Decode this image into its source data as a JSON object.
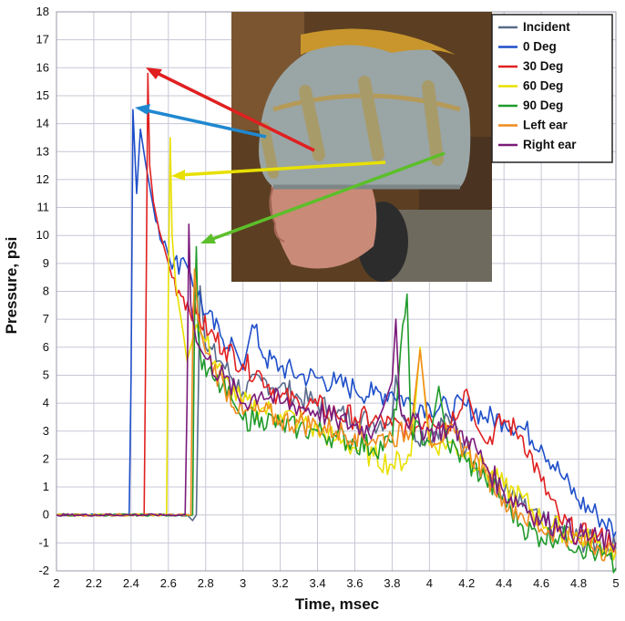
{
  "chart_data": {
    "type": "line",
    "xlabel": "Time, msec",
    "ylabel": "Pressure, psi",
    "xlim": [
      2,
      5
    ],
    "ylim": [
      -2,
      18
    ],
    "x_ticks": [
      "2",
      "2.2",
      "2.4",
      "2.6",
      "2.8",
      "3",
      "3.2",
      "3.4",
      "3.6",
      "3.8",
      "4",
      "4.2",
      "4.4",
      "4.6",
      "4.8",
      "5"
    ],
    "y_ticks": [
      "-2",
      "-1",
      "0",
      "1",
      "2",
      "3",
      "4",
      "5",
      "6",
      "7",
      "8",
      "9",
      "10",
      "11",
      "12",
      "13",
      "14",
      "15",
      "16",
      "17",
      "18"
    ],
    "grid": true,
    "legend_position": "top-right",
    "inset_image": "helmeted manikin head with pressure gauge locations",
    "series": [
      {
        "name": "Incident",
        "color": "#5a6a8a",
        "points": [
          [
            2,
            0
          ],
          [
            2.7,
            0
          ],
          [
            2.73,
            -0.2
          ],
          [
            2.75,
            0
          ],
          [
            2.77,
            8.2
          ],
          [
            2.8,
            6
          ],
          [
            2.88,
            5.5
          ],
          [
            3.0,
            4.4
          ],
          [
            3.1,
            4.8
          ],
          [
            3.2,
            4.6
          ],
          [
            3.3,
            4.2
          ],
          [
            3.4,
            4.0
          ],
          [
            3.5,
            3.6
          ],
          [
            3.6,
            3.5
          ],
          [
            3.7,
            3.3
          ],
          [
            3.8,
            3.5
          ],
          [
            3.82,
            5.0
          ],
          [
            3.85,
            3.6
          ],
          [
            3.9,
            3.0
          ],
          [
            4.0,
            2.8
          ],
          [
            4.1,
            3.5
          ],
          [
            4.2,
            2.4
          ],
          [
            4.3,
            1.5
          ],
          [
            4.4,
            0.8
          ],
          [
            4.5,
            0.3
          ],
          [
            4.6,
            -0.3
          ],
          [
            4.7,
            -0.5
          ],
          [
            4.8,
            -0.9
          ],
          [
            4.9,
            -1.0
          ],
          [
            5.0,
            -1.2
          ]
        ]
      },
      {
        "name": "0 Deg",
        "color": "#1f4fc9",
        "points": [
          [
            2,
            0
          ],
          [
            2.39,
            0
          ],
          [
            2.4,
            5
          ],
          [
            2.41,
            14.5
          ],
          [
            2.43,
            11.5
          ],
          [
            2.45,
            13.8
          ],
          [
            2.48,
            12.5
          ],
          [
            2.52,
            11
          ],
          [
            2.58,
            9.8
          ],
          [
            2.62,
            8.8
          ],
          [
            2.68,
            9.2
          ],
          [
            2.72,
            8.6
          ],
          [
            2.8,
            7.2
          ],
          [
            2.88,
            6.4
          ],
          [
            2.95,
            6.1
          ],
          [
            3.0,
            5.2
          ],
          [
            3.05,
            6.8
          ],
          [
            3.12,
            5.6
          ],
          [
            3.2,
            5.3
          ],
          [
            3.3,
            5.0
          ],
          [
            3.4,
            4.9
          ],
          [
            3.5,
            4.7
          ],
          [
            3.6,
            4.5
          ],
          [
            3.7,
            4.3
          ],
          [
            3.8,
            4.4
          ],
          [
            3.9,
            4.0
          ],
          [
            4.0,
            3.9
          ],
          [
            4.1,
            3.8
          ],
          [
            4.2,
            3.9
          ],
          [
            4.3,
            3.5
          ],
          [
            4.4,
            3.4
          ],
          [
            4.5,
            3.1
          ],
          [
            4.6,
            2.5
          ],
          [
            4.7,
            1.5
          ],
          [
            4.8,
            0.5
          ],
          [
            4.9,
            0
          ],
          [
            5.0,
            -0.6
          ]
        ]
      },
      {
        "name": "30 Deg",
        "color": "#e02020",
        "points": [
          [
            2,
            0
          ],
          [
            2.47,
            0
          ],
          [
            2.48,
            7
          ],
          [
            2.49,
            15.8
          ],
          [
            2.5,
            12.5
          ],
          [
            2.52,
            11.2
          ],
          [
            2.55,
            10.2
          ],
          [
            2.58,
            9.5
          ],
          [
            2.62,
            8.5
          ],
          [
            2.68,
            7.8
          ],
          [
            2.75,
            7.2
          ],
          [
            2.82,
            6.5
          ],
          [
            2.9,
            6.0
          ],
          [
            3.0,
            5.4
          ],
          [
            3.1,
            5.0
          ],
          [
            3.2,
            4.2
          ],
          [
            3.3,
            4.0
          ],
          [
            3.4,
            3.9
          ],
          [
            3.5,
            3.6
          ],
          [
            3.6,
            3.5
          ],
          [
            3.7,
            3.4
          ],
          [
            3.8,
            3.2
          ],
          [
            3.9,
            3.0
          ],
          [
            4.0,
            3.6
          ],
          [
            4.1,
            3.2
          ],
          [
            4.2,
            4.5
          ],
          [
            4.25,
            3.2
          ],
          [
            4.3,
            2.6
          ],
          [
            4.4,
            3.4
          ],
          [
            4.5,
            2.8
          ],
          [
            4.6,
            1.2
          ],
          [
            4.7,
            -0.2
          ],
          [
            4.8,
            -0.7
          ],
          [
            4.9,
            -0.8
          ],
          [
            5.0,
            -1.0
          ]
        ]
      },
      {
        "name": "60 Deg",
        "color": "#e8e000",
        "points": [
          [
            2,
            0
          ],
          [
            2.59,
            0
          ],
          [
            2.6,
            8
          ],
          [
            2.61,
            13.5
          ],
          [
            2.62,
            10
          ],
          [
            2.64,
            8.2
          ],
          [
            2.68,
            6.5
          ],
          [
            2.7,
            5.5
          ],
          [
            2.75,
            6.8
          ],
          [
            2.8,
            6.2
          ],
          [
            2.9,
            4.8
          ],
          [
            3.0,
            4.0
          ],
          [
            3.1,
            3.8
          ],
          [
            3.2,
            3.6
          ],
          [
            3.3,
            3.4
          ],
          [
            3.4,
            3.0
          ],
          [
            3.5,
            2.7
          ],
          [
            3.6,
            2.4
          ],
          [
            3.7,
            2.1
          ],
          [
            3.8,
            1.8
          ],
          [
            3.9,
            2.1
          ],
          [
            3.95,
            6.0
          ],
          [
            4.0,
            2.5
          ],
          [
            4.1,
            2.6
          ],
          [
            4.2,
            2.2
          ],
          [
            4.3,
            1.6
          ],
          [
            4.4,
            1.0
          ],
          [
            4.5,
            0.6
          ],
          [
            4.6,
            -0.2
          ],
          [
            4.7,
            -0.5
          ],
          [
            4.8,
            -0.8
          ],
          [
            4.9,
            -1.0
          ],
          [
            5.0,
            -1.3
          ]
        ]
      },
      {
        "name": "90 Deg",
        "color": "#1f9a2a",
        "points": [
          [
            2,
            0
          ],
          [
            2.73,
            0
          ],
          [
            2.74,
            7
          ],
          [
            2.75,
            9.6
          ],
          [
            2.76,
            6.5
          ],
          [
            2.78,
            5.2
          ],
          [
            2.85,
            4.8
          ],
          [
            2.95,
            4.0
          ],
          [
            3.0,
            3.4
          ],
          [
            3.1,
            3.5
          ],
          [
            3.2,
            3.2
          ],
          [
            3.3,
            3.1
          ],
          [
            3.4,
            3.0
          ],
          [
            3.5,
            2.8
          ],
          [
            3.6,
            2.6
          ],
          [
            3.7,
            2.4
          ],
          [
            3.8,
            2.6
          ],
          [
            3.88,
            7.9
          ],
          [
            3.9,
            3.2
          ],
          [
            4.0,
            2.6
          ],
          [
            4.05,
            4.6
          ],
          [
            4.1,
            2.5
          ],
          [
            4.2,
            1.9
          ],
          [
            4.3,
            1.3
          ],
          [
            4.4,
            0.5
          ],
          [
            4.5,
            -0.4
          ],
          [
            4.6,
            -0.8
          ],
          [
            4.7,
            -0.7
          ],
          [
            4.8,
            -1.1
          ],
          [
            4.9,
            -1.4
          ],
          [
            5.0,
            -1.9
          ]
        ]
      },
      {
        "name": "Left ear",
        "color": "#f08c1e",
        "points": [
          [
            2,
            0
          ],
          [
            2.72,
            0
          ],
          [
            2.73,
            6
          ],
          [
            2.74,
            8.8
          ],
          [
            2.76,
            7.0
          ],
          [
            2.8,
            5.8
          ],
          [
            2.9,
            4.6
          ],
          [
            3.0,
            3.6
          ],
          [
            3.1,
            3.7
          ],
          [
            3.2,
            3.4
          ],
          [
            3.3,
            3.3
          ],
          [
            3.4,
            3.2
          ],
          [
            3.5,
            3.0
          ],
          [
            3.6,
            2.9
          ],
          [
            3.7,
            2.7
          ],
          [
            3.8,
            2.8
          ],
          [
            3.9,
            3.0
          ],
          [
            3.95,
            5.9
          ],
          [
            4.0,
            2.8
          ],
          [
            4.1,
            2.9
          ],
          [
            4.2,
            2.4
          ],
          [
            4.3,
            1.5
          ],
          [
            4.4,
            0.6
          ],
          [
            4.5,
            0
          ],
          [
            4.6,
            -0.5
          ],
          [
            4.7,
            -0.6
          ],
          [
            4.8,
            -0.9
          ],
          [
            4.9,
            -1.1
          ],
          [
            5.0,
            -1.4
          ]
        ]
      },
      {
        "name": "Right ear",
        "color": "#7a1a7a",
        "points": [
          [
            2,
            0
          ],
          [
            2.69,
            0
          ],
          [
            2.7,
            4
          ],
          [
            2.71,
            10.4
          ],
          [
            2.72,
            7.5
          ],
          [
            2.75,
            6.2
          ],
          [
            2.8,
            5.6
          ],
          [
            2.9,
            4.9
          ],
          [
            3.0,
            4.0
          ],
          [
            3.1,
            4.4
          ],
          [
            3.2,
            4.0
          ],
          [
            3.3,
            3.9
          ],
          [
            3.4,
            3.7
          ],
          [
            3.5,
            3.4
          ],
          [
            3.6,
            3.2
          ],
          [
            3.7,
            3.0
          ],
          [
            3.75,
            3.8
          ],
          [
            3.8,
            4.8
          ],
          [
            3.82,
            7.0
          ],
          [
            3.84,
            4.0
          ],
          [
            3.9,
            3.3
          ],
          [
            4.0,
            3.0
          ],
          [
            4.1,
            3.1
          ],
          [
            4.2,
            2.8
          ],
          [
            4.3,
            1.8
          ],
          [
            4.4,
            0.8
          ],
          [
            4.5,
            0.4
          ],
          [
            4.6,
            -0.2
          ],
          [
            4.7,
            -0.4
          ],
          [
            4.8,
            -0.7
          ],
          [
            4.9,
            -0.9
          ],
          [
            5.0,
            -1.0
          ]
        ]
      }
    ]
  }
}
